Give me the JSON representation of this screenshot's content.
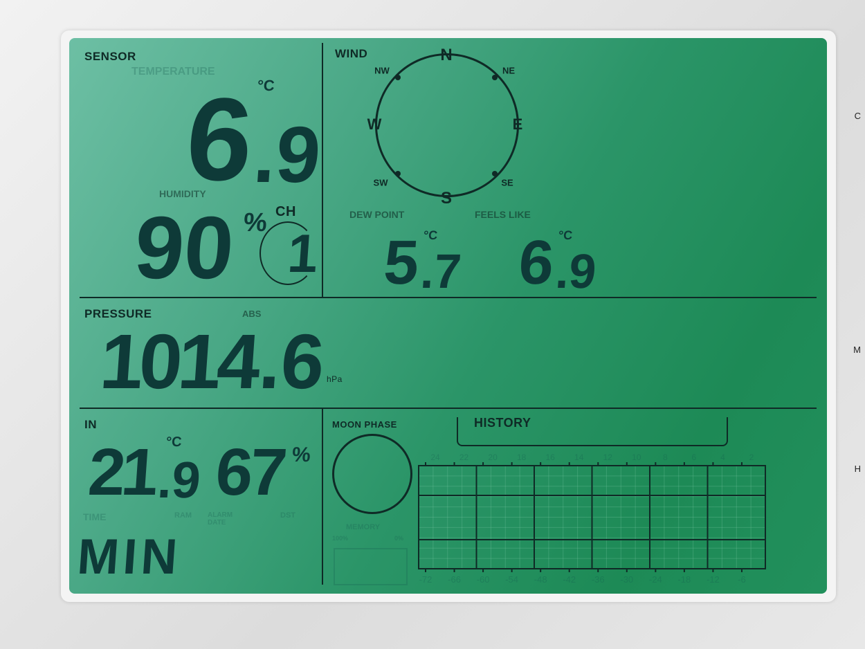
{
  "sensor": {
    "label": "SENSOR",
    "temperature_label": "TEMPERATURE",
    "temperature_int": "6",
    "temperature_dec": ".9",
    "temperature_unit": "°C",
    "humidity_label": "HUMIDITY",
    "humidity": "90",
    "humidity_unit": "%",
    "channel_label": "CH",
    "channel": "1"
  },
  "wind": {
    "label": "WIND",
    "directions": {
      "n": "N",
      "ne": "NE",
      "e": "E",
      "se": "SE",
      "s": "S",
      "sw": "SW",
      "w": "W",
      "nw": "NW"
    }
  },
  "dew_point": {
    "label": "DEW POINT",
    "int": "5",
    "dec": ".7",
    "unit": "°C"
  },
  "feels_like": {
    "label": "FEELS LIKE",
    "int": "6",
    "dec": ".9",
    "unit": "°C"
  },
  "pressure": {
    "label": "PRESSURE",
    "mode": "ABS",
    "int": "1014",
    "dec": ".6",
    "unit": "hPa"
  },
  "indoor": {
    "label": "IN",
    "temp_int": "21",
    "temp_dec": ".9",
    "temp_unit": "°C",
    "humidity": "67",
    "humidity_unit": "%"
  },
  "bottom": {
    "mode_text": "MIN",
    "ghost_labels": [
      "TIME",
      "RAM",
      "ALARM DATE",
      "DST"
    ]
  },
  "moon": {
    "label": "MOON PHASE",
    "memory_label": "MEMORY",
    "memory_full": "100%",
    "memory_empty": "0%"
  },
  "history": {
    "label": "HISTORY",
    "top_ticks": [
      "24",
      "22",
      "20",
      "18",
      "16",
      "14",
      "12",
      "10",
      "8",
      "6",
      "4",
      "2"
    ],
    "bottom_ticks": [
      "-72",
      "-66",
      "-60",
      "-54",
      "-48",
      "-42",
      "-36",
      "-30",
      "-24",
      "-18",
      "-12",
      "-6"
    ]
  },
  "colors": {
    "lcd_light": "#6dbfa4",
    "lcd_dark": "#1d8a56",
    "segment": "#0e3a38"
  },
  "edge_letters": [
    "C",
    "M",
    "H"
  ]
}
